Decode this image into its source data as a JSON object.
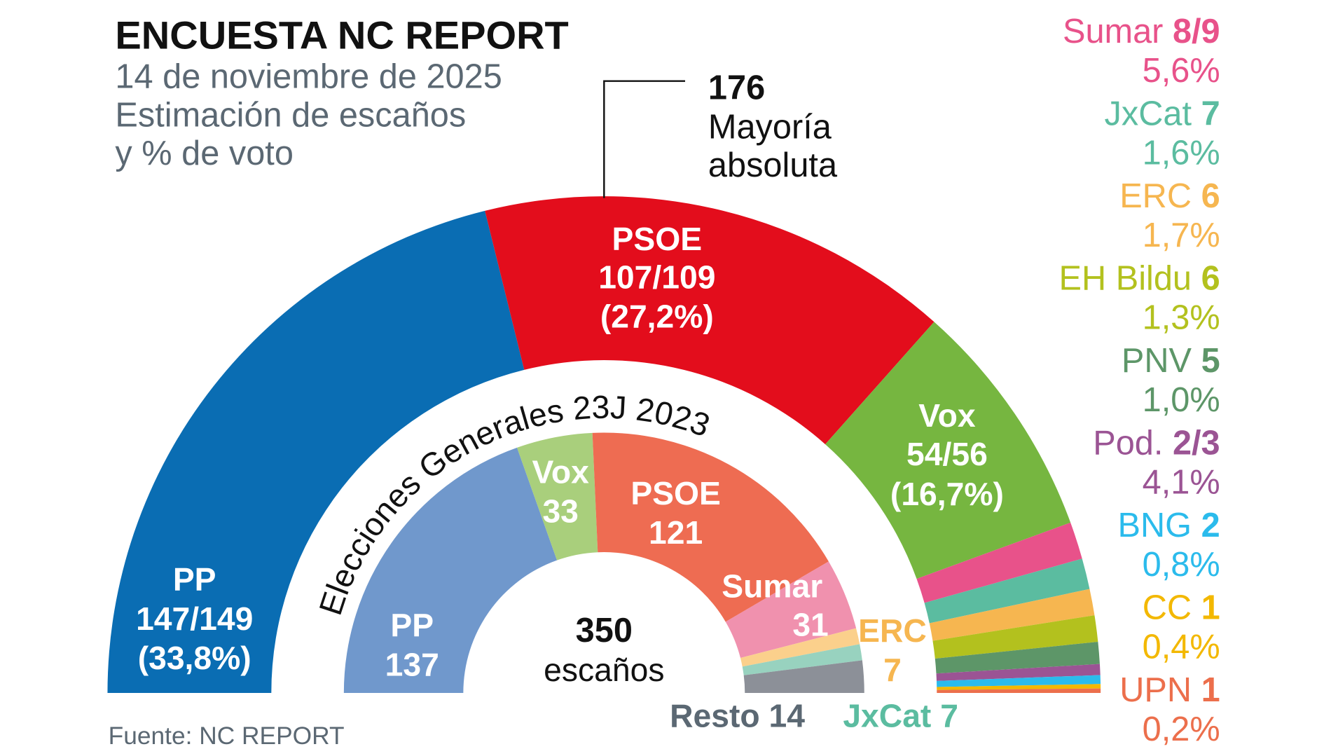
{
  "title": "ENCUESTA NC REPORT",
  "subtitle": [
    "14 de noviembre de 2025",
    "Estimación de escaños",
    "y % de voto"
  ],
  "majority": {
    "value": "176",
    "line1": "Mayoría",
    "line2": "absoluta"
  },
  "center": {
    "total": "350",
    "unit": "escaños"
  },
  "inner_title": "Elecciones Generales 23J 2023",
  "source": "Fuente: NC REPORT",
  "chart_data": {
    "type": "parliament-semicircle",
    "total_seats": 350,
    "majority": 176,
    "outer": {
      "name": "Encuesta NC Report",
      "parties": [
        {
          "party": "PP",
          "seats": "147/149",
          "seats_mid": 148,
          "vote": "33,8%",
          "color": "#0a6db3"
        },
        {
          "party": "PSOE",
          "seats": "107/109",
          "seats_mid": 108,
          "vote": "27,2%",
          "color": "#e30d1c"
        },
        {
          "party": "Vox",
          "seats": "54/56",
          "seats_mid": 55,
          "vote": "16,7%",
          "color": "#76b640"
        },
        {
          "party": "Sumar",
          "seats": "8/9",
          "seats_mid": 8.5,
          "vote": "5,6%",
          "color": "#e8528a"
        },
        {
          "party": "JxCat",
          "seats": "7",
          "seats_mid": 7,
          "vote": "1,6%",
          "color": "#5bbca0"
        },
        {
          "party": "ERC",
          "seats": "6",
          "seats_mid": 6,
          "vote": "1,7%",
          "color": "#f6b650"
        },
        {
          "party": "EH Bildu",
          "seats": "6",
          "seats_mid": 6,
          "vote": "1,3%",
          "color": "#b3c11e"
        },
        {
          "party": "PNV",
          "seats": "5",
          "seats_mid": 5,
          "vote": "1,0%",
          "color": "#5d9668"
        },
        {
          "party": "Pod.",
          "seats": "2/3",
          "seats_mid": 2.5,
          "vote": "4,1%",
          "color": "#9b5494"
        },
        {
          "party": "BNG",
          "seats": "2",
          "seats_mid": 2,
          "vote": "0,8%",
          "color": "#2bbbec"
        },
        {
          "party": "CC",
          "seats": "1",
          "seats_mid": 1,
          "vote": "0,4%",
          "color": "#f3b800"
        },
        {
          "party": "UPN",
          "seats": "1",
          "seats_mid": 1,
          "vote": "0,2%",
          "color": "#ec6f4c"
        }
      ]
    },
    "inner": {
      "name": "Elecciones Generales 23J 2023",
      "parties": [
        {
          "party": "PP",
          "seats": 137,
          "color": "#7098cc"
        },
        {
          "party": "Vox",
          "seats": 33,
          "color": "#a9cf7c"
        },
        {
          "party": "PSOE",
          "seats": 121,
          "color": "#ee6c52"
        },
        {
          "party": "Sumar",
          "seats": 31,
          "color": "#f091ae"
        },
        {
          "party": "ERC",
          "seats": 7,
          "color": "#fbd08c"
        },
        {
          "party": "JxCat",
          "seats": 7,
          "color": "#98d2bf"
        },
        {
          "party": "Resto",
          "seats": 14,
          "color": "#8c9098"
        }
      ]
    }
  },
  "labels": {
    "pp": [
      "PP",
      "147/149",
      "(33,8%)"
    ],
    "psoe": [
      "PSOE",
      "107/109",
      "(27,2%)"
    ],
    "vox": [
      "Vox",
      "54/56",
      "(16,7%)"
    ],
    "in_pp": [
      "PP",
      "137"
    ],
    "in_vox": [
      "Vox",
      "33"
    ],
    "in_psoe": [
      "PSOE",
      "121"
    ],
    "in_sumar": [
      "Sumar",
      "31"
    ],
    "in_erc": [
      "ERC",
      "7"
    ],
    "resto": "Resto 14",
    "jxcat": "JxCat 7"
  },
  "legend": [
    {
      "name": "Sumar",
      "seats": "8/9",
      "vote": "5,6%",
      "color": "#e8528a"
    },
    {
      "name": "JxCat",
      "seats": "7",
      "vote": "1,6%",
      "color": "#5bbca0"
    },
    {
      "name": "ERC",
      "seats": "6",
      "vote": "1,7%",
      "color": "#f6b650"
    },
    {
      "name": "EH Bildu",
      "seats": "6",
      "vote": "1,3%",
      "color": "#b3c11e"
    },
    {
      "name": "PNV",
      "seats": "5",
      "vote": "1,0%",
      "color": "#5d9668"
    },
    {
      "name": "Pod.",
      "seats": "2/3",
      "vote": "4,1%",
      "color": "#9b5494"
    },
    {
      "name": "BNG",
      "seats": "2",
      "vote": "0,8%",
      "color": "#2bbbec"
    },
    {
      "name": "CC",
      "seats": "1",
      "vote": "0,4%",
      "color": "#f3b800"
    },
    {
      "name": "UPN",
      "seats": "1",
      "vote": "0,2%",
      "color": "#ec6f4c"
    }
  ],
  "colors": {
    "text": "#111111",
    "muted": "#5b6873",
    "resto": "#5b6873"
  }
}
